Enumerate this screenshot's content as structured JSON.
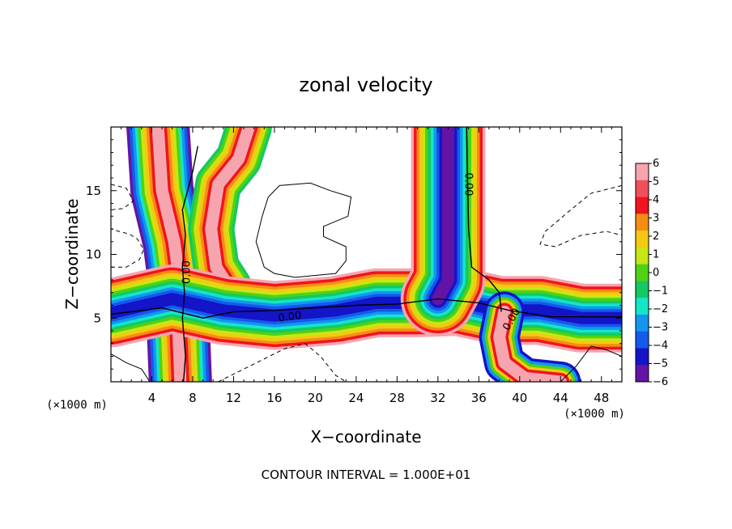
{
  "chart_data": {
    "type": "heatmap",
    "title": "zonal velocity",
    "xlabel": "X−coordinate",
    "ylabel": "Z−coordinate",
    "x_unit_left": "(×1000 m)",
    "x_unit_right": "(×1000 m)",
    "xlim": [
      0,
      50
    ],
    "ylim": [
      0,
      20
    ],
    "x_ticks": [
      4,
      8,
      12,
      16,
      20,
      24,
      28,
      32,
      36,
      40,
      44,
      48
    ],
    "y_ticks": [
      5,
      10,
      15
    ],
    "contour_interval_text": "CONTOUR INTERVAL = 1.000E+01",
    "contour_label": "0.00",
    "colorbar": {
      "levels": [
        6,
        5,
        4,
        3,
        2,
        1,
        0,
        -1,
        -2,
        -3,
        -4,
        -5,
        -6
      ],
      "labels": [
        "6",
        "5",
        "4",
        "3",
        "2",
        "1",
        "0",
        "−1",
        "−2",
        "−3",
        "−4",
        "−5",
        "−6"
      ],
      "colors": [
        "#f6a5ae",
        "#f0505a",
        "#f0141e",
        "#f58c14",
        "#f5c814",
        "#c8e614",
        "#50d214",
        "#14c864",
        "#14e6c8",
        "#1496f0",
        "#145aeb",
        "#1414c8",
        "#6414a5"
      ]
    },
    "features": [
      {
        "name": "left-jet",
        "type": "band",
        "points": [
          [
            4.6,
            20
          ],
          [
            5.0,
            15
          ],
          [
            6.2,
            11
          ],
          [
            6.6,
            8.5
          ],
          [
            6.8,
            6
          ],
          [
            6.6,
            4
          ],
          [
            6.8,
            0
          ]
        ],
        "palette": [
          "#6414a5",
          "#145aeb",
          "#1496f0",
          "#14e6c8",
          "#50d214",
          "#c8e614",
          "#f5c814",
          "#f58c14",
          "#f0141e",
          "#f6a5ae"
        ]
      },
      {
        "name": "upper-jet",
        "type": "band",
        "points": [
          [
            13.5,
            20
          ],
          [
            12.5,
            17.5
          ],
          [
            10.5,
            15.5
          ],
          [
            9.8,
            12
          ],
          [
            10.3,
            9
          ],
          [
            11.5,
            7.5
          ]
        ],
        "palette": [
          "#14c864",
          "#50d214",
          "#c8e614",
          "#f5c814",
          "#f58c14",
          "#f0141e",
          "#f6a5ae"
        ]
      },
      {
        "name": "lower-layer",
        "type": "band",
        "points": [
          [
            0,
            5.4
          ],
          [
            6,
            6.5
          ],
          [
            11,
            5.6
          ],
          [
            16,
            5.2
          ],
          [
            22,
            5.6
          ],
          [
            26,
            6.2
          ],
          [
            30,
            6.2
          ],
          [
            34,
            6.3
          ],
          [
            38,
            5.6
          ],
          [
            42,
            5.6
          ],
          [
            46,
            5.0
          ],
          [
            50,
            5.0
          ]
        ],
        "palette": [
          "#f6a5ae",
          "#f0141e",
          "#f58c14",
          "#f5c814",
          "#c8e614",
          "#50d214",
          "#14c864",
          "#14e6c8",
          "#1496f0",
          "#145aeb",
          "#1414c8"
        ]
      },
      {
        "name": "right-jet",
        "type": "band",
        "points": [
          [
            33,
            20
          ],
          [
            33,
            12
          ],
          [
            33,
            8
          ],
          [
            32,
            6.5
          ]
        ],
        "palette": [
          "#f6a5ae",
          "#f0141e",
          "#f58c14",
          "#f5c814",
          "#c8e614",
          "#50d214",
          "#14c864",
          "#14e6c8",
          "#1496f0",
          "#145aeb",
          "#1414c8",
          "#6414a5"
        ]
      },
      {
        "name": "bottom-right-jet",
        "type": "band",
        "points": [
          [
            38.5,
            5.5
          ],
          [
            38,
            3.5
          ],
          [
            38.5,
            1.5
          ],
          [
            40.5,
            0.3
          ],
          [
            44,
            0
          ]
        ],
        "palette": [
          "#1414c8",
          "#1496f0",
          "#50d214",
          "#f5c814",
          "#f0141e",
          "#f6a5ae"
        ]
      }
    ],
    "contours": [
      {
        "name": "zero-contour-left",
        "style": "solid",
        "points": [
          [
            8.5,
            18.5
          ],
          [
            8.0,
            16.5
          ],
          [
            7.0,
            13.5
          ],
          [
            7.3,
            11.5
          ],
          [
            7.0,
            9
          ],
          [
            7.2,
            7
          ],
          [
            7.0,
            5
          ],
          [
            7.3,
            2
          ],
          [
            7.1,
            0
          ]
        ]
      },
      {
        "name": "zero-contour-horizontal",
        "style": "solid",
        "points": [
          [
            0,
            5.3
          ],
          [
            5,
            5.8
          ],
          [
            9,
            5.0
          ],
          [
            12,
            5.5
          ],
          [
            16,
            5.6
          ],
          [
            20,
            5.8
          ],
          [
            24,
            6.0
          ],
          [
            28,
            6.1
          ],
          [
            32,
            6.5
          ],
          [
            36,
            6.2
          ],
          [
            39,
            5.6
          ],
          [
            43,
            5.1
          ],
          [
            50,
            5.1
          ]
        ]
      },
      {
        "name": "zero-contour-right",
        "style": "solid",
        "points": [
          [
            34.8,
            20
          ],
          [
            34.9,
            16
          ],
          [
            35.0,
            12
          ],
          [
            35.3,
            9
          ],
          [
            37.0,
            8.0
          ],
          [
            38.0,
            7.0
          ],
          [
            38.2,
            5.5
          ]
        ]
      },
      {
        "name": "closed-contour-upper",
        "style": "solid",
        "points": [
          [
            15.4,
            14.5
          ],
          [
            16.5,
            15.4
          ],
          [
            19.5,
            15.6
          ],
          [
            21.5,
            15.0
          ],
          [
            23.5,
            14.5
          ],
          [
            23.2,
            13.0
          ],
          [
            20.8,
            12.2
          ],
          [
            20.8,
            11.4
          ],
          [
            23.0,
            10.6
          ],
          [
            23.0,
            9.5
          ],
          [
            22.0,
            8.5
          ],
          [
            18.0,
            8.2
          ],
          [
            16.0,
            8.5
          ],
          [
            15.0,
            9.0
          ],
          [
            14.2,
            11.0
          ],
          [
            14.8,
            13.0
          ],
          [
            15.4,
            14.5
          ]
        ]
      },
      {
        "name": "dashed-contour-left-top",
        "style": "dashed",
        "points": [
          [
            0,
            15.5
          ],
          [
            1.5,
            15.2
          ],
          [
            2.2,
            14.2
          ],
          [
            1.2,
            13.6
          ],
          [
            0,
            13.5
          ]
        ]
      },
      {
        "name": "dashed-contour-left-mid",
        "style": "dashed",
        "points": [
          [
            0,
            9.0
          ],
          [
            1.5,
            9.0
          ],
          [
            2.8,
            9.6
          ],
          [
            3.2,
            10.4
          ],
          [
            2.6,
            11.2
          ],
          [
            1.8,
            11.6
          ],
          [
            0.8,
            11.8
          ],
          [
            0,
            12.0
          ]
        ]
      },
      {
        "name": "dashed-contour-right",
        "style": "dashed",
        "points": [
          [
            50,
            15.4
          ],
          [
            47.0,
            14.8
          ],
          [
            45.0,
            13.5
          ],
          [
            42.5,
            11.8
          ],
          [
            42.0,
            10.8
          ],
          [
            43.5,
            10.6
          ],
          [
            46.0,
            11.5
          ],
          [
            48.5,
            11.8
          ],
          [
            50,
            11.5
          ]
        ]
      },
      {
        "name": "dashed-contour-bottom",
        "style": "dashed",
        "points": [
          [
            10.5,
            0
          ],
          [
            13.5,
            1.2
          ],
          [
            17.0,
            2.6
          ],
          [
            19.0,
            3.0
          ],
          [
            20.5,
            2.0
          ],
          [
            22.0,
            0.5
          ],
          [
            23.0,
            0
          ]
        ]
      },
      {
        "name": "solid-contour-bottom-left",
        "style": "solid",
        "points": [
          [
            0,
            2.2
          ],
          [
            1.5,
            1.5
          ],
          [
            3.0,
            1.0
          ],
          [
            3.8,
            0
          ]
        ]
      },
      {
        "name": "solid-contour-bottom-right",
        "style": "solid",
        "points": [
          [
            44,
            0
          ],
          [
            45.5,
            1.2
          ],
          [
            47.0,
            2.8
          ],
          [
            48.5,
            2.5
          ],
          [
            50,
            2.0
          ]
        ]
      }
    ],
    "contour_labels": [
      {
        "x": 7.4,
        "y": 8.6,
        "angle": -90
      },
      {
        "x": 17.5,
        "y": 5.1,
        "angle": -8
      },
      {
        "x": 35.0,
        "y": 15.5,
        "angle": 90
      },
      {
        "x": 39.2,
        "y": 4.9,
        "angle": -60
      }
    ]
  }
}
